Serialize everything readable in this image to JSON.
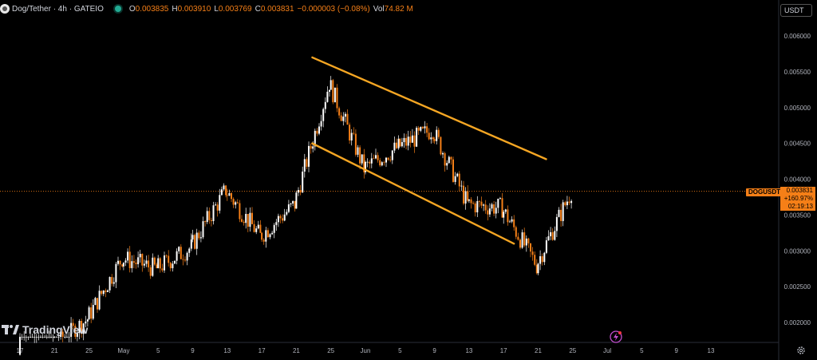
{
  "header": {
    "symbol_title": "Dog/Tether · 4h · GATEIO",
    "ohlc": [
      {
        "k": "O",
        "v": "0.003835"
      },
      {
        "k": "H",
        "v": "0.003910"
      },
      {
        "k": "L",
        "v": "0.003769"
      },
      {
        "k": "C",
        "v": "0.003831"
      },
      {
        "k": "",
        "v": "−0.000003 (−0.08%)"
      },
      {
        "k": "Vol",
        "v": "74.82 M"
      }
    ]
  },
  "price_axis": {
    "currency": "USDT",
    "ticks": [
      "0.006000",
      "0.005500",
      "0.005000",
      "0.004500",
      "0.004000",
      "0.003500",
      "0.003000",
      "0.002500",
      "0.002000"
    ]
  },
  "last_price": {
    "symbol": "DOGUSDT",
    "value": "0.003831",
    "change": "+160.97%",
    "countdown": "02:19:13"
  },
  "time_axis": {
    "labels": [
      "17",
      "21",
      "25",
      "May",
      "5",
      "9",
      "13",
      "17",
      "21",
      "25",
      "Jun",
      "5",
      "9",
      "13",
      "17",
      "21",
      "25",
      "Jul",
      "5",
      "9",
      "13"
    ]
  },
  "branding": {
    "logo_text": "TradingView"
  },
  "colors": {
    "background": "#000000",
    "up": "#ffffff",
    "down": "#f57f17",
    "channel": "#f5a623",
    "price_line": "#f57f17",
    "grid_text": "#b2b5be"
  },
  "chart_data": {
    "type": "candlestick",
    "title": "Dog/Tether · 4h · GATEIO",
    "ylim": [
      0.0018,
      0.0064
    ],
    "x_labels": [
      "17",
      "21",
      "25",
      "May",
      "5",
      "9",
      "13",
      "17",
      "21",
      "25",
      "Jun",
      "5",
      "9",
      "13",
      "17",
      "21",
      "25",
      "Jul",
      "5",
      "9",
      "13"
    ],
    "last_price": 0.003831,
    "path_approx": [
      {
        "label": "17",
        "price": 0.00155
      },
      {
        "label": "21",
        "price": 0.00165
      },
      {
        "label": "25",
        "price": 0.00205
      },
      {
        "label": "May",
        "price": 0.0029
      },
      {
        "label": "5",
        "price": 0.00275
      },
      {
        "label": "9",
        "price": 0.00305
      },
      {
        "label": "13",
        "price": 0.00385
      },
      {
        "label": "17",
        "price": 0.0032
      },
      {
        "label": "21",
        "price": 0.00365
      },
      {
        "label": "25",
        "price": 0.00535
      },
      {
        "label": "Jun",
        "price": 0.00415
      },
      {
        "label": "5",
        "price": 0.00445
      },
      {
        "label": "9",
        "price": 0.0047
      },
      {
        "label": "13",
        "price": 0.00365
      },
      {
        "label": "17",
        "price": 0.0036
      },
      {
        "label": "21",
        "price": 0.0028
      },
      {
        "label": "25",
        "price": 0.00383
      }
    ],
    "channel_lines": [
      {
        "name": "upper",
        "from": {
          "label": "21",
          "price": 0.0057
        },
        "to": {
          "label": "21 Jun",
          "price": 0.00428
        }
      },
      {
        "name": "lower",
        "from": {
          "label": "21",
          "price": 0.0045
        },
        "to": {
          "label": "17 Jun",
          "price": 0.0031
        }
      }
    ]
  }
}
